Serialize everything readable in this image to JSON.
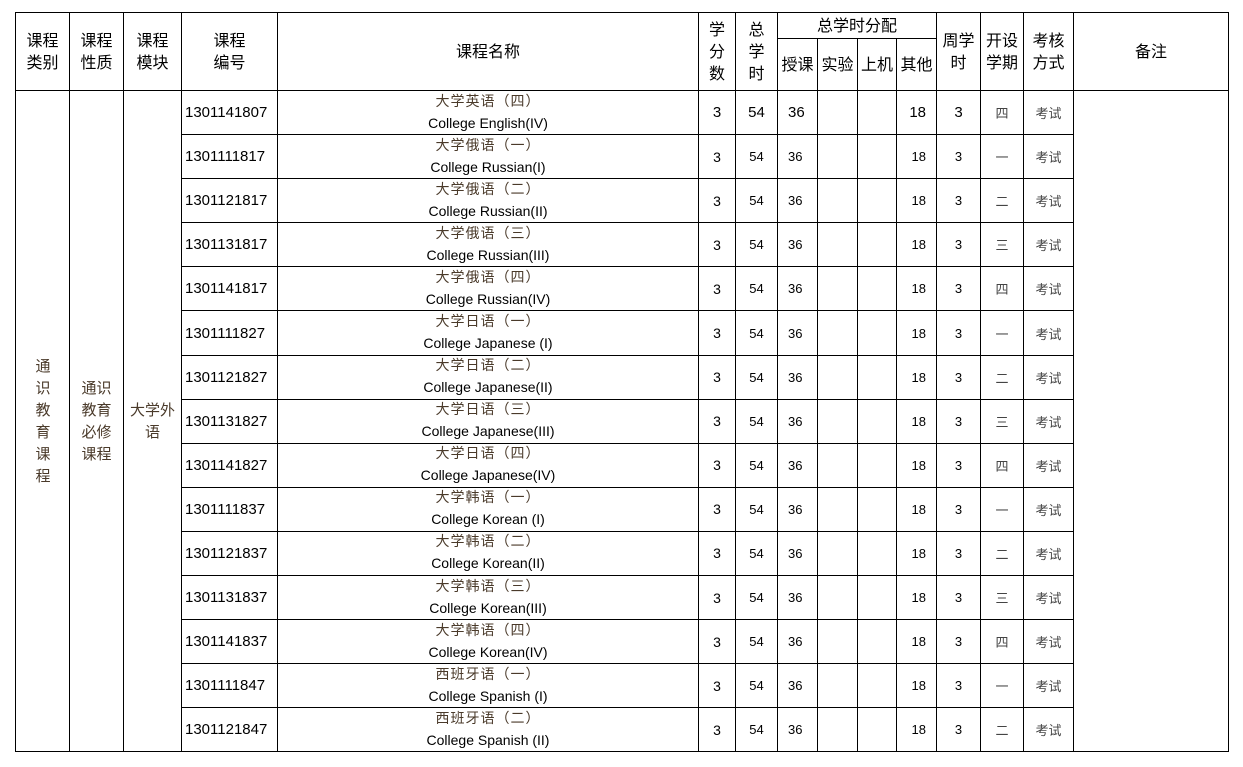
{
  "header": {
    "category": "课程类别",
    "nature": "课程性质",
    "module": "课程模块",
    "code": "课程编号",
    "name": "课程名称",
    "credits": "学分数",
    "total_hours": "总学时",
    "hours_distribution": "总学时分配",
    "lecture": "授课",
    "experiment": "实验",
    "computer": "上机",
    "other": "其他",
    "weekly_hours": "周学时",
    "semester": "开设学期",
    "assessment": "考核方式",
    "remarks": "备注"
  },
  "group": {
    "category": "通识教育课程",
    "nature": "通识教育必修课程",
    "module": "大学外语"
  },
  "rows": [
    {
      "code": "1301141807",
      "cn": "大学英语（四）",
      "en": "College English(IV)",
      "credits": "3",
      "total": "54",
      "lecture": "36",
      "experiment": "",
      "computer": "",
      "other": "18",
      "weekly": "3",
      "semester": "四",
      "exam": "考试"
    },
    {
      "code": "1301111817",
      "cn": "大学俄语（一）",
      "en": "College Russian(I)",
      "credits": "3",
      "total": "54",
      "lecture": "36",
      "experiment": "",
      "computer": "",
      "other": "18",
      "weekly": "3",
      "semester": "一",
      "exam": "考试"
    },
    {
      "code": "1301121817",
      "cn": "大学俄语（二）",
      "en": "College Russian(II)",
      "credits": "3",
      "total": "54",
      "lecture": "36",
      "experiment": "",
      "computer": "",
      "other": "18",
      "weekly": "3",
      "semester": "二",
      "exam": "考试"
    },
    {
      "code": "1301131817",
      "cn": "大学俄语（三）",
      "en": "College Russian(III)",
      "credits": "3",
      "total": "54",
      "lecture": "36",
      "experiment": "",
      "computer": "",
      "other": "18",
      "weekly": "3",
      "semester": "三",
      "exam": "考试"
    },
    {
      "code": "1301141817",
      "cn": "大学俄语（四）",
      "en": "College Russian(IV)",
      "credits": "3",
      "total": "54",
      "lecture": "36",
      "experiment": "",
      "computer": "",
      "other": "18",
      "weekly": "3",
      "semester": "四",
      "exam": "考试"
    },
    {
      "code": "1301111827",
      "cn": "大学日语（一）",
      "en": "College Japanese (I)",
      "credits": "3",
      "total": "54",
      "lecture": "36",
      "experiment": "",
      "computer": "",
      "other": "18",
      "weekly": "3",
      "semester": "一",
      "exam": "考试"
    },
    {
      "code": "1301121827",
      "cn": "大学日语（二）",
      "en": "College Japanese(II)",
      "credits": "3",
      "total": "54",
      "lecture": "36",
      "experiment": "",
      "computer": "",
      "other": "18",
      "weekly": "3",
      "semester": "二",
      "exam": "考试"
    },
    {
      "code": "1301131827",
      "cn": "大学日语（三）",
      "en": "College Japanese(III)",
      "credits": "3",
      "total": "54",
      "lecture": "36",
      "experiment": "",
      "computer": "",
      "other": "18",
      "weekly": "3",
      "semester": "三",
      "exam": "考试"
    },
    {
      "code": "1301141827",
      "cn": "大学日语（四）",
      "en": "College Japanese(IV)",
      "credits": "3",
      "total": "54",
      "lecture": "36",
      "experiment": "",
      "computer": "",
      "other": "18",
      "weekly": "3",
      "semester": "四",
      "exam": "考试"
    },
    {
      "code": "1301111837",
      "cn": "大学韩语（一）",
      "en": "College Korean (I)",
      "credits": "3",
      "total": "54",
      "lecture": "36",
      "experiment": "",
      "computer": "",
      "other": "18",
      "weekly": "3",
      "semester": "一",
      "exam": "考试"
    },
    {
      "code": "1301121837",
      "cn": "大学韩语（二）",
      "en": "College Korean(II)",
      "credits": "3",
      "total": "54",
      "lecture": "36",
      "experiment": "",
      "computer": "",
      "other": "18",
      "weekly": "3",
      "semester": "二",
      "exam": "考试"
    },
    {
      "code": "1301131837",
      "cn": "大学韩语（三）",
      "en": "College Korean(III)",
      "credits": "3",
      "total": "54",
      "lecture": "36",
      "experiment": "",
      "computer": "",
      "other": "18",
      "weekly": "3",
      "semester": "三",
      "exam": "考试"
    },
    {
      "code": "1301141837",
      "cn": "大学韩语（四）",
      "en": "College Korean(IV)",
      "credits": "3",
      "total": "54",
      "lecture": "36",
      "experiment": "",
      "computer": "",
      "other": "18",
      "weekly": "3",
      "semester": "四",
      "exam": "考试"
    },
    {
      "code": "1301111847",
      "cn": "西班牙语（一）",
      "en": "College Spanish (I)",
      "credits": "3",
      "total": "54",
      "lecture": "36",
      "experiment": "",
      "computer": "",
      "other": "18",
      "weekly": "3",
      "semester": "一",
      "exam": "考试"
    },
    {
      "code": "1301121847",
      "cn": "西班牙语（二）",
      "en": "College Spanish (II)",
      "credits": "3",
      "total": "54",
      "lecture": "36",
      "experiment": "",
      "computer": "",
      "other": "18",
      "weekly": "3",
      "semester": "二",
      "exam": "考试"
    }
  ]
}
